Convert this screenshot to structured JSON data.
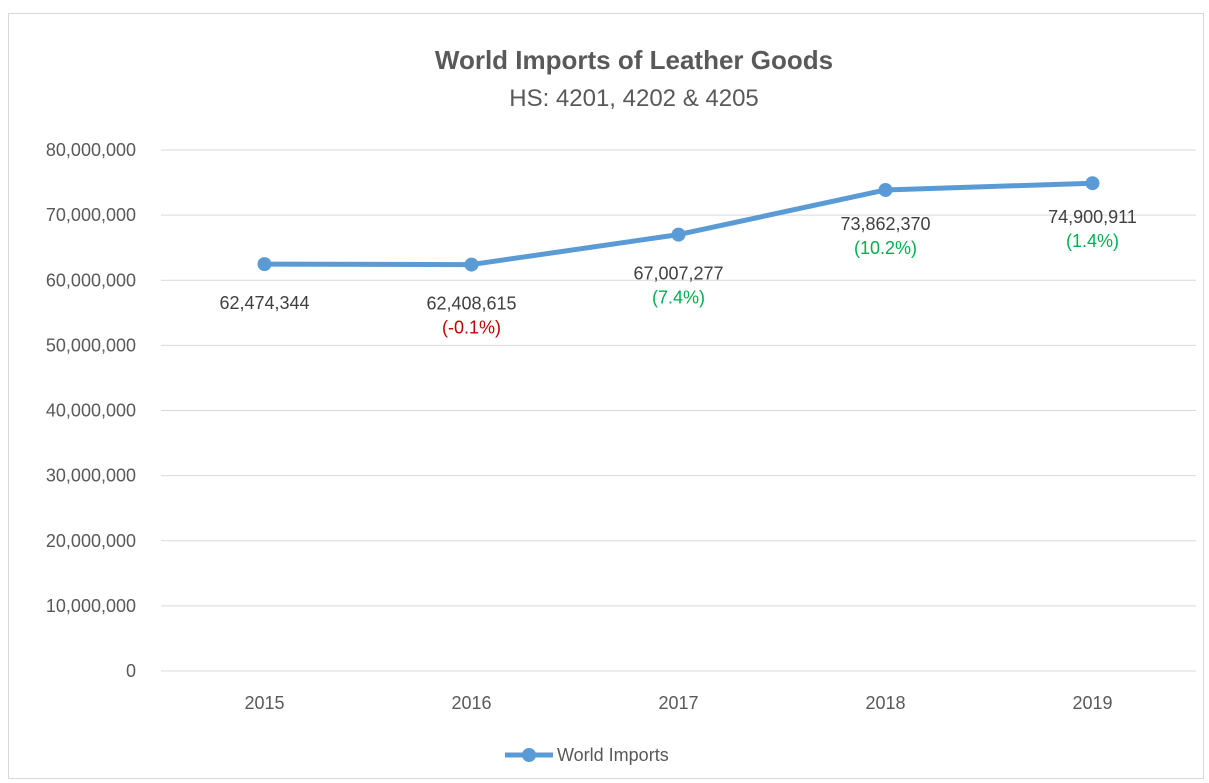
{
  "chart_data": {
    "type": "line",
    "title": "World Imports of Leather Goods",
    "subtitle": "HS: 4201, 4202 & 4205",
    "categories": [
      "2015",
      "2016",
      "2017",
      "2018",
      "2019"
    ],
    "series": [
      {
        "name": "World Imports",
        "values": [
          62474344,
          62408615,
          67007277,
          73862370,
          74900911
        ],
        "value_labels": [
          "62,474,344",
          "62,408,615",
          "67,007,277",
          "73,862,370",
          "74,900,911"
        ],
        "change_labels": [
          "",
          "(-0.1%)",
          "(7.4%)",
          "(10.2%)",
          "(1.4%)"
        ],
        "color": "#5b9bd5"
      }
    ],
    "y_ticks": [
      "0",
      "10,000,000",
      "20,000,000",
      "30,000,000",
      "40,000,000",
      "50,000,000",
      "60,000,000",
      "70,000,000",
      "80,000,000"
    ],
    "ylim": [
      0,
      80000000
    ],
    "grid": true,
    "legend_position": "bottom",
    "colors": {
      "line": "#5b9bd5",
      "positive": "#00b050",
      "negative": "#c00000",
      "grid": "#d9d9d9"
    }
  }
}
